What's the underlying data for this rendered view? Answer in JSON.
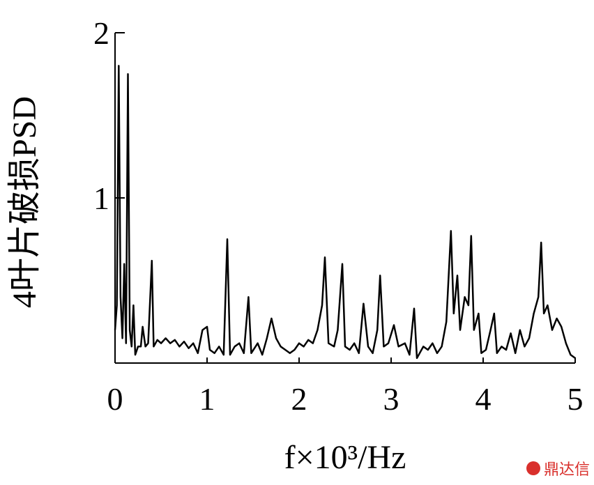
{
  "chart_data": {
    "type": "line",
    "ylabel": "4叶片破损PSD",
    "xlabel": "f×10³/Hz",
    "watermark": "鼎达信",
    "color": "#000000",
    "xlim": [
      0,
      5
    ],
    "xticks": [
      0,
      1,
      2,
      3,
      4,
      5
    ],
    "ylim": [
      0,
      2
    ],
    "yticks": [
      1,
      2
    ],
    "x": [
      0.0,
      0.02,
      0.04,
      0.06,
      0.08,
      0.1,
      0.12,
      0.14,
      0.16,
      0.18,
      0.2,
      0.22,
      0.25,
      0.28,
      0.3,
      0.33,
      0.36,
      0.4,
      0.42,
      0.46,
      0.5,
      0.55,
      0.6,
      0.65,
      0.7,
      0.75,
      0.8,
      0.85,
      0.9,
      0.95,
      1.0,
      1.03,
      1.08,
      1.13,
      1.18,
      1.22,
      1.25,
      1.3,
      1.35,
      1.4,
      1.45,
      1.48,
      1.55,
      1.6,
      1.65,
      1.7,
      1.75,
      1.8,
      1.85,
      1.9,
      1.95,
      2.0,
      2.05,
      2.1,
      2.15,
      2.2,
      2.25,
      2.28,
      2.32,
      2.38,
      2.42,
      2.47,
      2.5,
      2.55,
      2.6,
      2.65,
      2.7,
      2.75,
      2.8,
      2.85,
      2.88,
      2.92,
      2.97,
      3.03,
      3.08,
      3.15,
      3.2,
      3.25,
      3.28,
      3.35,
      3.4,
      3.45,
      3.5,
      3.55,
      3.6,
      3.65,
      3.68,
      3.72,
      3.75,
      3.8,
      3.84,
      3.87,
      3.9,
      3.95,
      3.98,
      4.03,
      4.08,
      4.12,
      4.15,
      4.2,
      4.25,
      4.3,
      4.35,
      4.4,
      4.45,
      4.5,
      4.55,
      4.6,
      4.63,
      4.66,
      4.7,
      4.75,
      4.8,
      4.85,
      4.9,
      4.95,
      5.0
    ],
    "values": [
      0.2,
      0.35,
      1.8,
      0.4,
      0.15,
      0.6,
      0.12,
      1.75,
      0.2,
      0.1,
      0.35,
      0.05,
      0.1,
      0.1,
      0.22,
      0.1,
      0.12,
      0.62,
      0.1,
      0.14,
      0.12,
      0.15,
      0.12,
      0.14,
      0.1,
      0.13,
      0.09,
      0.12,
      0.06,
      0.2,
      0.22,
      0.08,
      0.06,
      0.1,
      0.05,
      0.75,
      0.05,
      0.1,
      0.12,
      0.06,
      0.4,
      0.06,
      0.12,
      0.05,
      0.15,
      0.27,
      0.15,
      0.1,
      0.08,
      0.06,
      0.08,
      0.12,
      0.1,
      0.14,
      0.12,
      0.2,
      0.35,
      0.64,
      0.12,
      0.1,
      0.2,
      0.6,
      0.1,
      0.08,
      0.12,
      0.06,
      0.36,
      0.1,
      0.06,
      0.2,
      0.53,
      0.1,
      0.12,
      0.23,
      0.1,
      0.12,
      0.05,
      0.33,
      0.03,
      0.1,
      0.08,
      0.12,
      0.06,
      0.1,
      0.25,
      0.8,
      0.3,
      0.53,
      0.2,
      0.4,
      0.35,
      0.77,
      0.2,
      0.3,
      0.06,
      0.08,
      0.2,
      0.3,
      0.06,
      0.1,
      0.08,
      0.18,
      0.06,
      0.2,
      0.1,
      0.15,
      0.3,
      0.4,
      0.73,
      0.3,
      0.35,
      0.2,
      0.27,
      0.22,
      0.12,
      0.05,
      0.03
    ]
  }
}
